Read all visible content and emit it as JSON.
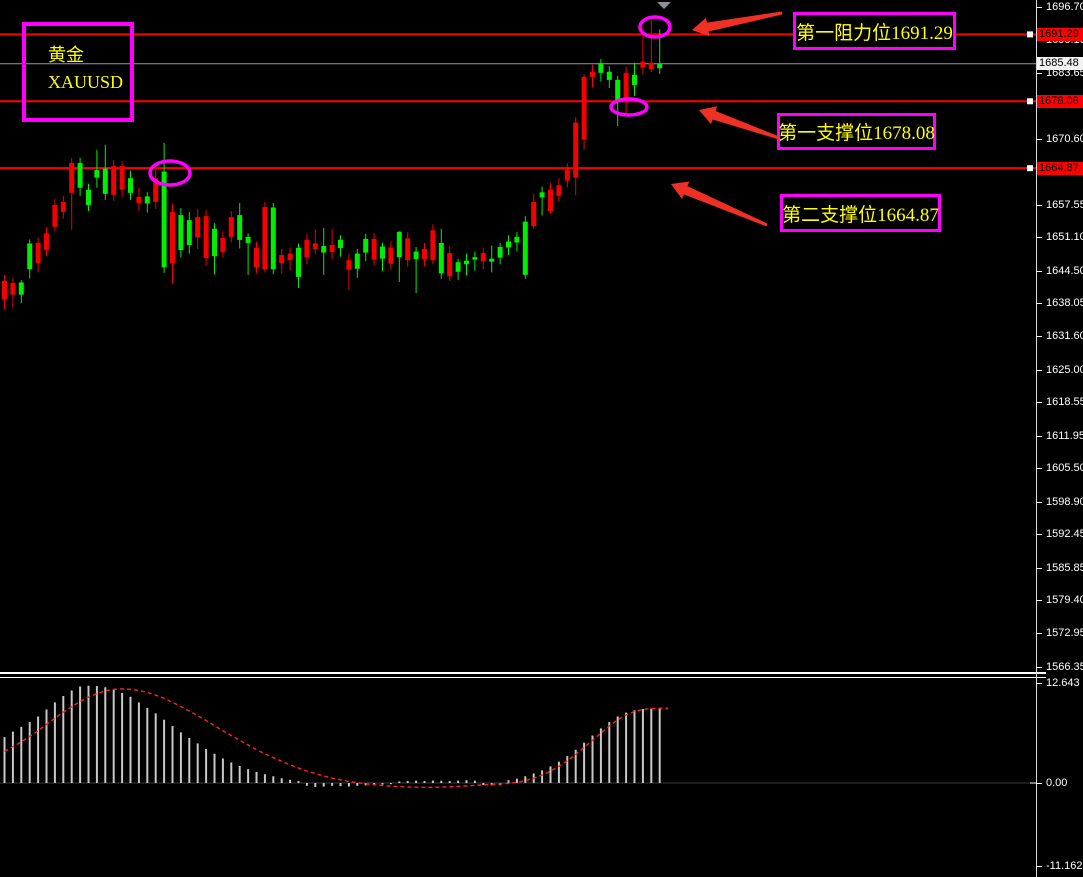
{
  "symbol_box": {
    "line1": "黄金",
    "line2": "XAUUSD"
  },
  "annotations": {
    "resistance1": {
      "label": "第一阻力位1691.29",
      "price": 1691.29
    },
    "support1": {
      "label": "第一支撑位1678.08",
      "price": 1678.08
    },
    "support2": {
      "label": "第二支撑位1664.87",
      "price": 1664.87
    }
  },
  "colors": {
    "background": "#000000",
    "bull": "#00ef00",
    "bear": "#f40000",
    "level_line": "#ff0000",
    "current_price_line": "#939aa5",
    "annotation_border": "#ff00ff",
    "annotation_text": "#ffff00",
    "arrow": "#ee3025",
    "histogram": "#c8c8c8",
    "signal_line": "#ff2020",
    "axis_text": "#ffffff"
  },
  "price_axis": {
    "ticks": [
      "1696.70",
      "1690.10",
      "1683.65",
      "1677.20",
      "1670.60",
      "1664.15",
      "1657.55",
      "1651.10",
      "1644.50",
      "1638.05",
      "1631.60",
      "1625.00",
      "1618.55",
      "1611.95",
      "1605.50",
      "1598.90",
      "1592.45",
      "1585.85",
      "1579.40",
      "1572.95",
      "1566.35"
    ],
    "badges": [
      {
        "text": "1691.29",
        "style": "red"
      },
      {
        "text": "1685.48",
        "style": "white"
      },
      {
        "text": "1678.08",
        "style": "red"
      },
      {
        "text": "1664.87",
        "style": "red"
      }
    ]
  },
  "indicator_axis": {
    "max_label": "12.643",
    "zero_label": "0.00",
    "min_label": "-11.162"
  },
  "current_price": "1685.48",
  "chart_data": [
    {
      "type": "candlestick",
      "title": "黄金 XAUUSD",
      "ylim": [
        1566.35,
        1696.7
      ],
      "grid": false,
      "levels": {
        "resistance1": 1691.29,
        "current": 1685.48,
        "support1": 1678.08,
        "support2": 1664.87
      },
      "candles_ohlc": [
        [
          1642.6,
          1643.8,
          1636.9,
          1638.9
        ],
        [
          1642.2,
          1643.2,
          1637.3,
          1639.9
        ],
        [
          1639.9,
          1642.8,
          1638.2,
          1642.3
        ],
        [
          1644.9,
          1650.8,
          1643.1,
          1650.0
        ],
        [
          1650.1,
          1651.2,
          1644.3,
          1646.1
        ],
        [
          1652.0,
          1653.2,
          1647.5,
          1648.7
        ],
        [
          1657.6,
          1658.8,
          1652.4,
          1653.3
        ],
        [
          1658.2,
          1659.4,
          1654.9,
          1656.2
        ],
        [
          1665.9,
          1666.9,
          1652.7,
          1660.0
        ],
        [
          1661.0,
          1666.9,
          1659.4,
          1665.9
        ],
        [
          1657.6,
          1661.8,
          1656.4,
          1660.6
        ],
        [
          1663.0,
          1668.5,
          1661.0,
          1664.5
        ],
        [
          1659.8,
          1669.5,
          1658.6,
          1664.8
        ],
        [
          1665.3,
          1666.5,
          1658.4,
          1659.6
        ],
        [
          1665.3,
          1666.2,
          1659.2,
          1660.6
        ],
        [
          1660.0,
          1664.4,
          1658.6,
          1662.9
        ],
        [
          1659.2,
          1661.0,
          1656.5,
          1658.0
        ],
        [
          1657.9,
          1660.2,
          1656.1,
          1659.3
        ],
        [
          1662.9,
          1665.5,
          1656.8,
          1658.2
        ],
        [
          1645.3,
          1669.9,
          1644.2,
          1664.2
        ],
        [
          1656.2,
          1657.8,
          1642.1,
          1646.1
        ],
        [
          1648.7,
          1657.0,
          1647.2,
          1655.6
        ],
        [
          1649.7,
          1656.2,
          1648.0,
          1654.6
        ],
        [
          1655.2,
          1656.8,
          1648.9,
          1651.2
        ],
        [
          1655.4,
          1656.6,
          1645.6,
          1647.1
        ],
        [
          1647.5,
          1654.0,
          1643.9,
          1652.9
        ],
        [
          1651.1,
          1652.3,
          1647.3,
          1648.3
        ],
        [
          1655.2,
          1656.4,
          1650.2,
          1651.3
        ],
        [
          1650.7,
          1658.0,
          1649.0,
          1655.6
        ],
        [
          1650.1,
          1652.0,
          1643.8,
          1651.3
        ],
        [
          1649.1,
          1650.3,
          1644.2,
          1645.3
        ],
        [
          1657.2,
          1658.2,
          1644.3,
          1644.9
        ],
        [
          1644.9,
          1658.0,
          1643.9,
          1657.1
        ],
        [
          1647.7,
          1649.0,
          1644.1,
          1646.1
        ],
        [
          1648.0,
          1649.2,
          1644.7,
          1646.7
        ],
        [
          1643.4,
          1650.0,
          1641.2,
          1649.1
        ],
        [
          1650.7,
          1651.9,
          1645.9,
          1647.3
        ],
        [
          1650.0,
          1652.8,
          1647.9,
          1648.9
        ],
        [
          1648.2,
          1653.1,
          1643.8,
          1649.5
        ],
        [
          1649.7,
          1652.8,
          1646.9,
          1648.3
        ],
        [
          1649.1,
          1651.6,
          1647.4,
          1650.7
        ],
        [
          1646.7,
          1648.0,
          1640.8,
          1644.8
        ],
        [
          1645.0,
          1648.9,
          1643.2,
          1648.0
        ],
        [
          1648.2,
          1651.9,
          1646.5,
          1650.9
        ],
        [
          1650.9,
          1652.0,
          1645.7,
          1646.8
        ],
        [
          1647.0,
          1650.2,
          1644.5,
          1649.4
        ],
        [
          1649.2,
          1650.4,
          1644.8,
          1646.0
        ],
        [
          1647.3,
          1652.4,
          1642.4,
          1652.3
        ],
        [
          1651.0,
          1652.2,
          1645.4,
          1646.7
        ],
        [
          1646.9,
          1649.3,
          1640.2,
          1648.4
        ],
        [
          1648.9,
          1650.1,
          1645.5,
          1646.9
        ],
        [
          1652.6,
          1653.8,
          1645.9,
          1646.7
        ],
        [
          1644.1,
          1652.9,
          1643.0,
          1650.1
        ],
        [
          1648.1,
          1649.4,
          1642.6,
          1643.5
        ],
        [
          1644.4,
          1647.0,
          1642.8,
          1646.3
        ],
        [
          1645.9,
          1648.0,
          1643.7,
          1646.6
        ],
        [
          1646.8,
          1648.4,
          1644.6,
          1647.3
        ],
        [
          1648.1,
          1649.2,
          1644.9,
          1646.5
        ],
        [
          1646.4,
          1649.6,
          1644.3,
          1647.0
        ],
        [
          1647.2,
          1650.1,
          1645.9,
          1649.3
        ],
        [
          1649.2,
          1651.6,
          1647.7,
          1650.4
        ],
        [
          1650.2,
          1652.3,
          1648.5,
          1651.3
        ],
        [
          1643.8,
          1655.4,
          1643.0,
          1654.3
        ],
        [
          1658.2,
          1659.8,
          1652.9,
          1653.4
        ],
        [
          1659.1,
          1661.2,
          1655.5,
          1660.1
        ],
        [
          1660.6,
          1661.9,
          1655.9,
          1656.4
        ],
        [
          1661.5,
          1662.9,
          1658.2,
          1659.4
        ],
        [
          1664.6,
          1665.8,
          1661.1,
          1662.4
        ],
        [
          1673.9,
          1674.9,
          1659.5,
          1663.0
        ],
        [
          1682.9,
          1683.4,
          1668.5,
          1670.5
        ],
        [
          1683.9,
          1685.3,
          1680.8,
          1682.9
        ],
        [
          1683.7,
          1686.4,
          1682.0,
          1685.6
        ],
        [
          1682.3,
          1685.0,
          1680.7,
          1683.9
        ],
        [
          1678.0,
          1683.1,
          1673.2,
          1682.3
        ],
        [
          1683.7,
          1684.9,
          1675.4,
          1677.9
        ],
        [
          1681.3,
          1685.7,
          1679.1,
          1683.3
        ],
        [
          1685.9,
          1692.8,
          1683.4,
          1684.7
        ],
        [
          1685.7,
          1694.1,
          1683.9,
          1684.4
        ],
        [
          1684.6,
          1692.3,
          1683.5,
          1685.48
        ]
      ]
    },
    {
      "type": "bar",
      "title": "oscillator (histogram + signal line)",
      "ylim": [
        -11.162,
        12.643
      ],
      "grid": false,
      "histogram": [
        5.8,
        6.5,
        7.1,
        7.7,
        8.4,
        9.3,
        10.2,
        11.0,
        11.7,
        12.2,
        12.3,
        12.25,
        12.1,
        11.8,
        11.4,
        10.9,
        10.2,
        9.5,
        8.8,
        8.0,
        7.2,
        6.4,
        5.7,
        5.0,
        4.3,
        3.7,
        3.1,
        2.6,
        2.15,
        1.75,
        1.4,
        1.1,
        0.85,
        0.6,
        0.4,
        0.25,
        -0.35,
        -0.5,
        -0.45,
        -0.35,
        -0.4,
        -0.45,
        -0.35,
        -0.3,
        -0.25,
        -0.2,
        -0.15,
        0.2,
        0.25,
        0.3,
        0.25,
        0.3,
        0.28,
        0.25,
        0.3,
        0.35,
        0.3,
        -0.25,
        -0.3,
        -0.28,
        0.35,
        0.55,
        0.85,
        1.2,
        1.6,
        2.1,
        2.7,
        3.4,
        4.2,
        5.1,
        6.0,
        6.9,
        7.7,
        8.4,
        8.9,
        9.2,
        9.35,
        9.4,
        9.35
      ],
      "signal": [
        4.0,
        4.6,
        5.2,
        5.9,
        6.6,
        7.4,
        8.2,
        8.95,
        9.65,
        10.3,
        10.85,
        11.3,
        11.65,
        11.85,
        11.9,
        11.85,
        11.7,
        11.45,
        11.1,
        10.7,
        10.2,
        9.65,
        9.1,
        8.5,
        7.9,
        7.25,
        6.6,
        6.0,
        5.4,
        4.8,
        4.2,
        3.7,
        3.2,
        2.75,
        2.3,
        1.9,
        1.5,
        1.18,
        0.9,
        0.63,
        0.4,
        0.2,
        0.05,
        -0.1,
        -0.22,
        -0.32,
        -0.4,
        -0.46,
        -0.5,
        -0.53,
        -0.55,
        -0.54,
        -0.52,
        -0.48,
        -0.43,
        -0.37,
        -0.3,
        -0.24,
        -0.18,
        -0.12,
        -0.05,
        0.08,
        0.3,
        0.6,
        1.0,
        1.5,
        2.1,
        2.8,
        3.6,
        4.5,
        5.4,
        6.3,
        7.2,
        8.0,
        8.6,
        9.05,
        9.3,
        9.4,
        9.45,
        9.45
      ]
    }
  ]
}
